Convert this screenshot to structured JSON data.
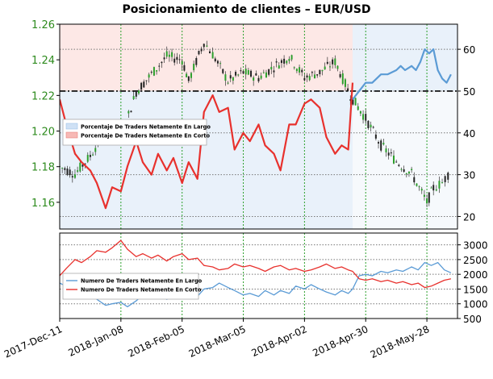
{
  "chart_data": [
    {
      "type": "line",
      "title": "Posicionamiento de clientes – EUR/USD",
      "x_ticks": [
        "2017-Dec-11",
        "2018-Jan-08",
        "2018-Feb-05",
        "2018-Mar-05",
        "2018-Apr-02",
        "2018-Apr-30",
        "2018-May-28"
      ],
      "price_axis": {
        "side": "left",
        "ylim": [
          1.145,
          1.26
        ],
        "ticks": [
          "1.26",
          "1.24",
          "1.22",
          "1.20",
          "1.18",
          "1.16"
        ]
      },
      "percent_axis": {
        "side": "right",
        "ylim": [
          17,
          66
        ],
        "ticks": [
          "60",
          "50",
          "40",
          "30",
          "20"
        ]
      },
      "reference_line": 50,
      "legend": {
        "position": "left",
        "entries": [
          "Porcentaje De Traders Netamente En Largo",
          "Porcentaje De Traders Netamente En Corto"
        ]
      },
      "series": [
        {
          "name": "Porcentaje De Traders Netamente En Largo",
          "color": "#5b9bd5",
          "points": [
            [
              "2018-Apr-24",
              48
            ],
            [
              "2018-Apr-27",
              50
            ],
            [
              "2018-Apr-30",
              52
            ],
            [
              "2018-May-03",
              52
            ],
            [
              "2018-May-07",
              54
            ],
            [
              "2018-May-10",
              54
            ],
            [
              "2018-May-14",
              55
            ],
            [
              "2018-May-16",
              56
            ],
            [
              "2018-May-18",
              55
            ],
            [
              "2018-May-21",
              56
            ],
            [
              "2018-May-23",
              55
            ],
            [
              "2018-May-25",
              57
            ],
            [
              "2018-May-27",
              60
            ],
            [
              "2018-May-29",
              59
            ],
            [
              "2018-May-31",
              60
            ],
            [
              "2018-Jun-02",
              55
            ],
            [
              "2018-Jun-04",
              53
            ],
            [
              "2018-Jun-06",
              52
            ],
            [
              "2018-Jun-08",
              54
            ]
          ]
        },
        {
          "name": "Porcentaje De Traders Netamente En Corto",
          "color": "#e8312d",
          "points": [
            [
              "2017-Dec-11",
              48
            ],
            [
              "2017-Dec-14",
              42
            ],
            [
              "2017-Dec-18",
              35
            ],
            [
              "2017-Dec-21",
              33
            ],
            [
              "2017-Dec-25",
              31
            ],
            [
              "2017-Dec-28",
              28
            ],
            [
              "2018-Jan-01",
              22
            ],
            [
              "2018-Jan-04",
              27
            ],
            [
              "2018-Jan-08",
              26
            ],
            [
              "2018-Jan-11",
              32
            ],
            [
              "2018-Jan-15",
              38
            ],
            [
              "2018-Jan-18",
              33
            ],
            [
              "2018-Jan-22",
              30
            ],
            [
              "2018-Jan-25",
              35
            ],
            [
              "2018-Jan-29",
              31
            ],
            [
              "2018-Feb-01",
              34
            ],
            [
              "2018-Feb-05",
              28
            ],
            [
              "2018-Feb-08",
              33
            ],
            [
              "2018-Feb-12",
              29
            ],
            [
              "2018-Feb-15",
              45
            ],
            [
              "2018-Feb-19",
              49
            ],
            [
              "2018-Feb-22",
              45
            ],
            [
              "2018-Feb-26",
              46
            ],
            [
              "2018-Mar-01",
              36
            ],
            [
              "2018-Mar-05",
              40
            ],
            [
              "2018-Mar-08",
              38
            ],
            [
              "2018-Mar-12",
              42
            ],
            [
              "2018-Mar-15",
              37
            ],
            [
              "2018-Mar-19",
              35
            ],
            [
              "2018-Mar-22",
              31
            ],
            [
              "2018-Mar-26",
              42
            ],
            [
              "2018-Mar-29",
              42
            ],
            [
              "2018-Apr-02",
              47
            ],
            [
              "2018-Apr-05",
              48
            ],
            [
              "2018-Apr-09",
              46
            ],
            [
              "2018-Apr-12",
              39
            ],
            [
              "2018-Apr-16",
              35
            ],
            [
              "2018-Apr-19",
              37
            ],
            [
              "2018-Apr-22",
              36
            ],
            [
              "2018-Apr-24",
              52
            ]
          ]
        }
      ]
    },
    {
      "type": "line",
      "x_ticks": [
        "2017-Dec-11",
        "2018-Jan-08",
        "2018-Feb-05",
        "2018-Mar-05",
        "2018-Apr-02",
        "2018-Apr-30",
        "2018-May-28"
      ],
      "ylim": [
        500,
        3400
      ],
      "yticks": [
        "3000",
        "2500",
        "2000",
        "1500",
        "1000",
        "500"
      ],
      "legend": {
        "position": "left",
        "entries": [
          "Numero De Traders Netamente En Largo",
          "Numero De Traders Netamente En Corto"
        ]
      },
      "series": [
        {
          "name": "Numero De Traders Netamente En Largo",
          "color": "#5b9bd5",
          "points": [
            [
              "2017-Dec-11",
              1700
            ],
            [
              "2017-Dec-14",
              1600
            ],
            [
              "2017-Dec-18",
              1450
            ],
            [
              "2017-Dec-21",
              1300
            ],
            [
              "2017-Dec-25",
              1350
            ],
            [
              "2017-Dec-28",
              1150
            ],
            [
              "2018-Jan-01",
              950
            ],
            [
              "2018-Jan-04",
              1000
            ],
            [
              "2018-Jan-08",
              1050
            ],
            [
              "2018-Jan-11",
              900
            ],
            [
              "2018-Jan-15",
              1100
            ],
            [
              "2018-Jan-18",
              1300
            ],
            [
              "2018-Jan-22",
              1200
            ],
            [
              "2018-Jan-25",
              1350
            ],
            [
              "2018-Jan-29",
              1150
            ],
            [
              "2018-Feb-01",
              1250
            ],
            [
              "2018-Feb-05",
              1200
            ],
            [
              "2018-Feb-08",
              1350
            ],
            [
              "2018-Feb-12",
              1250
            ],
            [
              "2018-Feb-15",
              1500
            ],
            [
              "2018-Feb-19",
              1550
            ],
            [
              "2018-Feb-22",
              1700
            ],
            [
              "2018-Feb-26",
              1550
            ],
            [
              "2018-Mar-01",
              1450
            ],
            [
              "2018-Mar-05",
              1300
            ],
            [
              "2018-Mar-08",
              1350
            ],
            [
              "2018-Mar-12",
              1250
            ],
            [
              "2018-Mar-15",
              1450
            ],
            [
              "2018-Mar-19",
              1300
            ],
            [
              "2018-Mar-22",
              1450
            ],
            [
              "2018-Mar-26",
              1350
            ],
            [
              "2018-Mar-29",
              1600
            ],
            [
              "2018-Apr-02",
              1500
            ],
            [
              "2018-Apr-05",
              1650
            ],
            [
              "2018-Apr-09",
              1500
            ],
            [
              "2018-Apr-12",
              1400
            ],
            [
              "2018-Apr-16",
              1300
            ],
            [
              "2018-Apr-19",
              1450
            ],
            [
              "2018-Apr-22",
              1350
            ],
            [
              "2018-Apr-24",
              1500
            ],
            [
              "2018-Apr-27",
              1950
            ],
            [
              "2018-Apr-30",
              2000
            ],
            [
              "2018-May-03",
              1950
            ],
            [
              "2018-May-07",
              2100
            ],
            [
              "2018-May-10",
              2050
            ],
            [
              "2018-May-14",
              2150
            ],
            [
              "2018-May-17",
              2100
            ],
            [
              "2018-May-21",
              2250
            ],
            [
              "2018-May-24",
              2150
            ],
            [
              "2018-May-27",
              2400
            ],
            [
              "2018-May-30",
              2300
            ],
            [
              "2018-Jun-02",
              2400
            ],
            [
              "2018-Jun-05",
              2150
            ],
            [
              "2018-Jun-08",
              2050
            ]
          ]
        },
        {
          "name": "Numero De Traders Netamente En Corto",
          "color": "#e8312d",
          "points": [
            [
              "2017-Dec-11",
              1950
            ],
            [
              "2017-Dec-14",
              2200
            ],
            [
              "2017-Dec-18",
              2500
            ],
            [
              "2017-Dec-21",
              2400
            ],
            [
              "2017-Dec-25",
              2600
            ],
            [
              "2017-Dec-28",
              2800
            ],
            [
              "2018-Jan-01",
              2750
            ],
            [
              "2018-Jan-04",
              2900
            ],
            [
              "2018-Jan-08",
              3150
            ],
            [
              "2018-Jan-11",
              2850
            ],
            [
              "2018-Jan-15",
              2600
            ],
            [
              "2018-Jan-18",
              2700
            ],
            [
              "2018-Jan-22",
              2550
            ],
            [
              "2018-Jan-25",
              2650
            ],
            [
              "2018-Jan-29",
              2450
            ],
            [
              "2018-Feb-01",
              2600
            ],
            [
              "2018-Feb-05",
              2700
            ],
            [
              "2018-Feb-08",
              2500
            ],
            [
              "2018-Feb-12",
              2550
            ],
            [
              "2018-Feb-15",
              2300
            ],
            [
              "2018-Feb-19",
              2250
            ],
            [
              "2018-Feb-22",
              2150
            ],
            [
              "2018-Feb-26",
              2200
            ],
            [
              "2018-Mar-01",
              2350
            ],
            [
              "2018-Mar-05",
              2250
            ],
            [
              "2018-Mar-08",
              2300
            ],
            [
              "2018-Mar-12",
              2200
            ],
            [
              "2018-Mar-15",
              2100
            ],
            [
              "2018-Mar-19",
              2250
            ],
            [
              "2018-Mar-22",
              2300
            ],
            [
              "2018-Mar-26",
              2150
            ],
            [
              "2018-Mar-29",
              2200
            ],
            [
              "2018-Apr-02",
              2100
            ],
            [
              "2018-Apr-05",
              2150
            ],
            [
              "2018-Apr-09",
              2250
            ],
            [
              "2018-Apr-12",
              2350
            ],
            [
              "2018-Apr-16",
              2200
            ],
            [
              "2018-Apr-19",
              2250
            ],
            [
              "2018-Apr-22",
              2150
            ],
            [
              "2018-Apr-24",
              2100
            ],
            [
              "2018-Apr-27",
              1850
            ],
            [
              "2018-Apr-30",
              1800
            ],
            [
              "2018-May-03",
              1850
            ],
            [
              "2018-May-07",
              1750
            ],
            [
              "2018-May-10",
              1800
            ],
            [
              "2018-May-14",
              1700
            ],
            [
              "2018-May-17",
              1750
            ],
            [
              "2018-May-21",
              1650
            ],
            [
              "2018-May-24",
              1700
            ],
            [
              "2018-May-27",
              1550
            ],
            [
              "2018-May-30",
              1600
            ],
            [
              "2018-Jun-02",
              1700
            ],
            [
              "2018-Jun-05",
              1800
            ],
            [
              "2018-Jun-08",
              1850
            ]
          ]
        }
      ]
    }
  ]
}
